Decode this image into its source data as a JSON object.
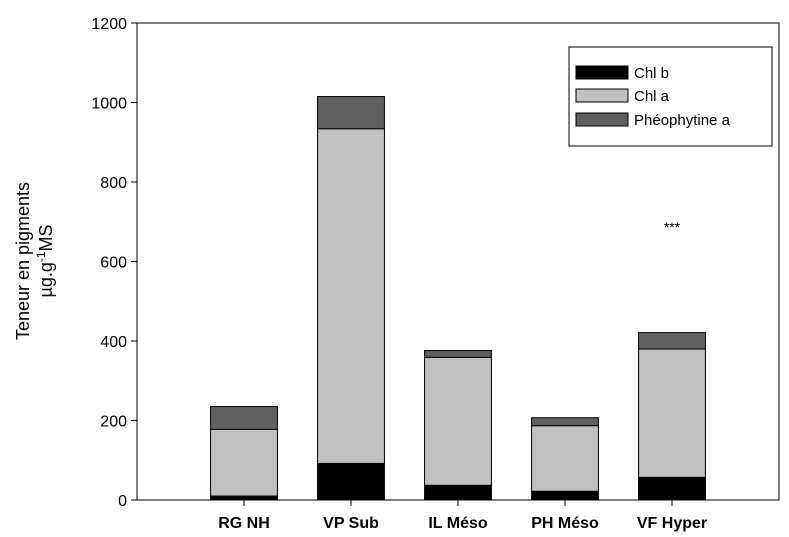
{
  "chart_data": {
    "type": "bar",
    "stacked": true,
    "categories": [
      "RG NH",
      "VP Sub",
      "IL Méso",
      "PH Méso",
      "VF Hyper"
    ],
    "series": [
      {
        "name": "Chl b",
        "color": "#000000",
        "values": [
          10,
          92,
          37,
          22,
          57
        ]
      },
      {
        "name": "Chl a",
        "color": "#c0c0c0",
        "values": [
          168,
          842,
          322,
          165,
          323
        ]
      },
      {
        "name": "Phéophytine a",
        "color": "#606060",
        "values": [
          57,
          81,
          17,
          20,
          41
        ]
      }
    ],
    "ylabel_line1": "Teneur en pigments",
    "ylabel_line2": {
      "base": "µg.g",
      "sup": "-1",
      "suffix": "MS"
    },
    "ylim": [
      0,
      1200
    ],
    "yticks": [
      "0",
      "200",
      "400",
      "600",
      "800",
      "1000",
      "1200"
    ],
    "annotations": [
      {
        "category": "VP Sub",
        "text": "***"
      },
      {
        "category": "VF Hyper",
        "text": "***"
      }
    ],
    "legend_position": "top-right",
    "grid": false
  }
}
